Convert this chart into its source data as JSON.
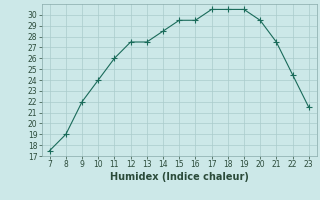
{
  "x": [
    7,
    8,
    9,
    10,
    11,
    12,
    13,
    14,
    15,
    16,
    17,
    18,
    19,
    20,
    21,
    22,
    23
  ],
  "y": [
    17.5,
    19.0,
    22.0,
    24.0,
    26.0,
    27.5,
    27.5,
    28.5,
    29.5,
    29.5,
    30.5,
    30.5,
    30.5,
    29.5,
    27.5,
    24.5,
    21.5
  ],
  "line_color": "#1a6b5a",
  "marker": "+",
  "marker_size": 4,
  "bg_color": "#cce8e8",
  "grid_color": "#aacccc",
  "xlabel": "Humidex (Indice chaleur)",
  "xlim": [
    6.5,
    23.5
  ],
  "ylim": [
    17,
    31
  ],
  "xticks": [
    7,
    8,
    9,
    10,
    11,
    12,
    13,
    14,
    15,
    16,
    17,
    18,
    19,
    20,
    21,
    22,
    23
  ],
  "yticks": [
    17,
    18,
    19,
    20,
    21,
    22,
    23,
    24,
    25,
    26,
    27,
    28,
    29,
    30
  ],
  "tick_fontsize": 5.5,
  "xlabel_fontsize": 7,
  "tick_color": "#2b4b3a",
  "spine_color": "#88aaaa"
}
